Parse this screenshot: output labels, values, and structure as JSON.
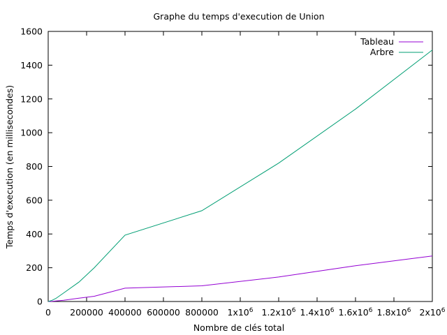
{
  "chart_data": {
    "type": "line",
    "title": "Graphe du temps d'execution de Union",
    "xlabel": "Nombre de clés total",
    "ylabel": "Temps d'execution (en millisecondes)",
    "xlim": [
      0,
      2000000
    ],
    "ylim": [
      0,
      1600
    ],
    "grid": false,
    "legend_position": "top-right",
    "xticks": [
      {
        "value": 0,
        "label": "0",
        "sup": ""
      },
      {
        "value": 200000,
        "label": "200000",
        "sup": ""
      },
      {
        "value": 400000,
        "label": "400000",
        "sup": ""
      },
      {
        "value": 600000,
        "label": "600000",
        "sup": ""
      },
      {
        "value": 800000,
        "label": "800000",
        "sup": ""
      },
      {
        "value": 1000000,
        "label": "1x10",
        "sup": "6"
      },
      {
        "value": 1200000,
        "label": "1.2x10",
        "sup": "6"
      },
      {
        "value": 1400000,
        "label": "1.4x10",
        "sup": "6"
      },
      {
        "value": 1600000,
        "label": "1.6x10",
        "sup": "6"
      },
      {
        "value": 1800000,
        "label": "1.8x10",
        "sup": "6"
      },
      {
        "value": 2000000,
        "label": "2x10",
        "sup": "6"
      }
    ],
    "yticks": [
      {
        "value": 0,
        "label": "0"
      },
      {
        "value": 200,
        "label": "200"
      },
      {
        "value": 400,
        "label": "400"
      },
      {
        "value": 600,
        "label": "600"
      },
      {
        "value": 800,
        "label": "800"
      },
      {
        "value": 1000,
        "label": "1000"
      },
      {
        "value": 1200,
        "label": "1200"
      },
      {
        "value": 1400,
        "label": "1400"
      },
      {
        "value": 1600,
        "label": "1600"
      }
    ],
    "series": [
      {
        "name": "Tableau",
        "color": "#9400d3",
        "x": [
          0,
          20000,
          40000,
          80000,
          160000,
          240000,
          400000,
          800000,
          1200000,
          1600000,
          2000000
        ],
        "y": [
          0,
          1,
          3,
          7,
          20,
          31,
          79,
          93,
          145,
          212,
          270
        ]
      },
      {
        "name": "Arbre",
        "color": "#009e73",
        "x": [
          0,
          20000,
          40000,
          80000,
          160000,
          240000,
          400000,
          800000,
          1200000,
          1600000,
          2000000
        ],
        "y": [
          0,
          7,
          18,
          50,
          115,
          200,
          393,
          538,
          820,
          1140,
          1490
        ]
      }
    ]
  }
}
